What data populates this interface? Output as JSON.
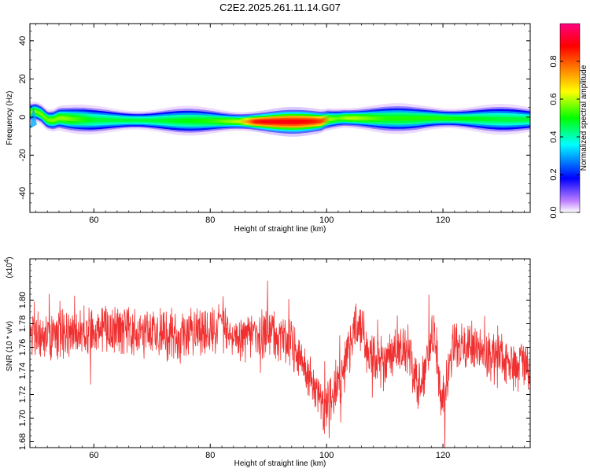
{
  "chart_data": [
    {
      "type": "heatmap",
      "title": "C2E2.2025.261.11.14.G07",
      "xlabel": "Height of straight line (km)",
      "ylabel": "Frequency (Hz)",
      "xlim": [
        49,
        135
      ],
      "ylim": [
        -50,
        49
      ],
      "xticks": [
        60,
        80,
        100,
        120
      ],
      "yticks": [
        40,
        20,
        0,
        -20,
        -40
      ],
      "colorbar": {
        "label": "Normalized spectral amplitude",
        "range": [
          0,
          1
        ],
        "ticks": [
          "0.0",
          "0.2",
          "0.4",
          "0.6",
          "0.8"
        ],
        "colors": [
          "#ffffff",
          "#8000ff",
          "#0000ff",
          "#00ffff",
          "#00ff00",
          "#ffff00",
          "#ff8000",
          "#ff0000",
          "#ff0080"
        ]
      },
      "ridge_center_hz": [
        [
          49,
          2.5
        ],
        [
          50,
          3.0
        ],
        [
          51,
          1.5
        ],
        [
          52,
          -1.5
        ],
        [
          53,
          -1.8
        ],
        [
          54,
          -0.5
        ],
        [
          56,
          -1.0
        ],
        [
          60,
          -1.5
        ],
        [
          70,
          -1.8
        ],
        [
          80,
          -2.0
        ],
        [
          85,
          -2.3
        ],
        [
          90,
          -2.5
        ],
        [
          95,
          -2.5
        ],
        [
          99,
          -2.2
        ],
        [
          100,
          -1.3
        ],
        [
          103,
          -0.5
        ],
        [
          105,
          -0.6
        ],
        [
          110,
          -0.8
        ],
        [
          115,
          -0.8
        ],
        [
          118,
          -0.6
        ],
        [
          122,
          -0.8
        ],
        [
          130,
          -1.2
        ],
        [
          135,
          -1.3
        ]
      ],
      "ridge_peak_amplitude": [
        [
          49,
          0.6
        ],
        [
          52,
          0.6
        ],
        [
          55,
          0.62
        ],
        [
          60,
          0.5
        ],
        [
          70,
          0.5
        ],
        [
          80,
          0.55
        ],
        [
          85,
          0.65
        ],
        [
          88,
          0.95
        ],
        [
          95,
          0.95
        ],
        [
          99,
          0.9
        ],
        [
          101,
          0.55
        ],
        [
          104,
          0.65
        ],
        [
          110,
          0.55
        ],
        [
          120,
          0.55
        ],
        [
          130,
          0.5
        ],
        [
          135,
          0.5
        ]
      ]
    },
    {
      "type": "line",
      "xlabel": "Height of straight line (km)",
      "ylabel": "SNR (10 * v/v)",
      "scale_label": "(x10",
      "scale_exp": "4",
      "scale_close": ")",
      "xlim": [
        49,
        135
      ],
      "ylim": [
        1.675,
        1.835
      ],
      "xticks": [
        60,
        80,
        100,
        120
      ],
      "yticks": [
        1.68,
        1.7,
        1.72,
        1.74,
        1.76,
        1.78,
        1.8
      ],
      "ytick_labels": [
        "1.68",
        "1.70",
        "1.72",
        "1.74",
        "1.76",
        "1.78",
        "1.80"
      ],
      "line_color": "#f03030",
      "baseline": [
        [
          49,
          1.77
        ],
        [
          55,
          1.772
        ],
        [
          60,
          1.772
        ],
        [
          65,
          1.775
        ],
        [
          70,
          1.772
        ],
        [
          75,
          1.768
        ],
        [
          80,
          1.775
        ],
        [
          85,
          1.77
        ],
        [
          90,
          1.773
        ],
        [
          92,
          1.768
        ],
        [
          94,
          1.76
        ],
        [
          96,
          1.745
        ],
        [
          98,
          1.728
        ],
        [
          99,
          1.712
        ],
        [
          100,
          1.712
        ],
        [
          101,
          1.72
        ],
        [
          102,
          1.73
        ],
        [
          103,
          1.74
        ],
        [
          104,
          1.76
        ],
        [
          105,
          1.775
        ],
        [
          106,
          1.77
        ],
        [
          108,
          1.755
        ],
        [
          110,
          1.745
        ],
        [
          112,
          1.757
        ],
        [
          114,
          1.762
        ],
        [
          115,
          1.74
        ],
        [
          116,
          1.725
        ],
        [
          117,
          1.742
        ],
        [
          118,
          1.772
        ],
        [
          119,
          1.755
        ],
        [
          119.6,
          1.715
        ],
        [
          120.2,
          1.716
        ],
        [
          121,
          1.745
        ],
        [
          122,
          1.768
        ],
        [
          123,
          1.76
        ],
        [
          126,
          1.757
        ],
        [
          130,
          1.75
        ],
        [
          135,
          1.74
        ]
      ]
    }
  ]
}
